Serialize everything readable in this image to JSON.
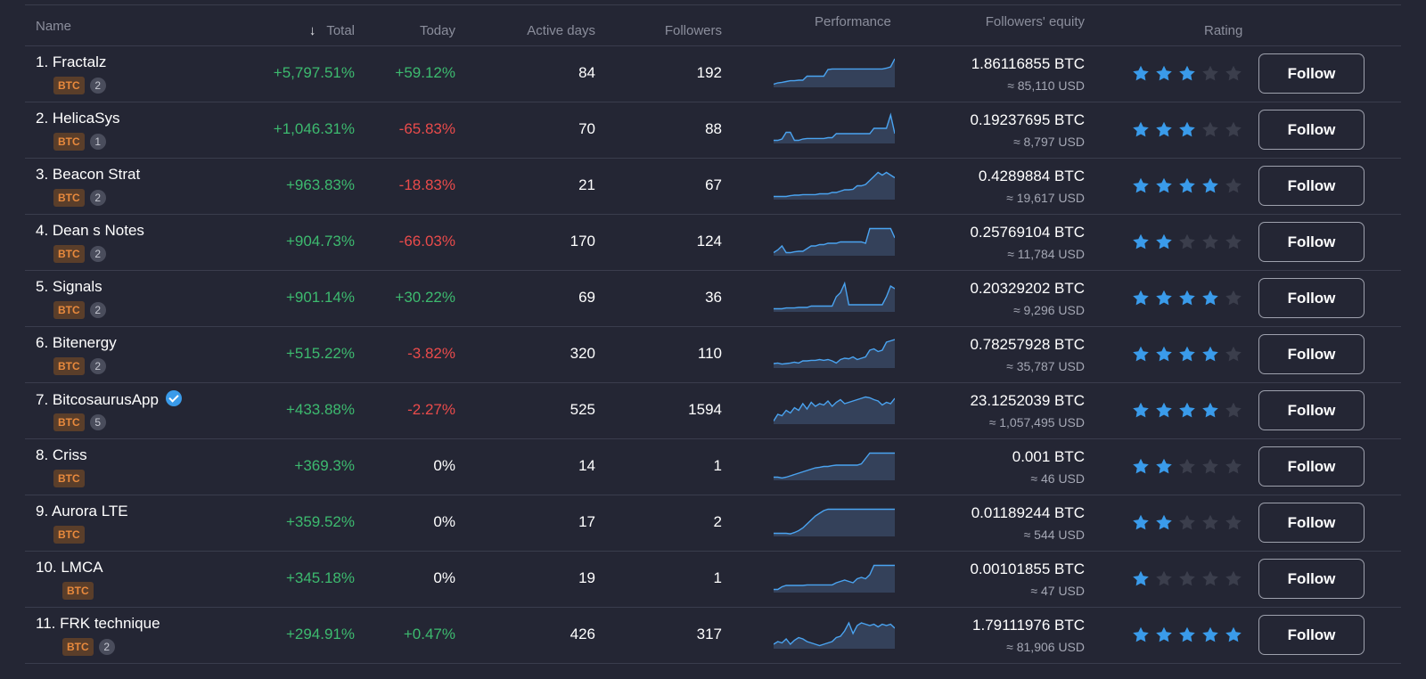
{
  "header": {
    "name": "Name",
    "total": "Total",
    "today": "Today",
    "active_days": "Active days",
    "followers": "Followers",
    "performance": "Performance",
    "equity": "Followers' equity",
    "rating": "Rating",
    "sort_icon": "arrow-down-icon"
  },
  "colors": {
    "positive": "#3dba6f",
    "negative": "#ea4b4b",
    "accent": "#3a9bea",
    "btc_badge": "#e98a3d"
  },
  "rows": [
    {
      "name": "1. Fractalz",
      "badge": "BTC",
      "count": "2",
      "verified": false,
      "total": "+5,797.51%",
      "today": "+59.12%",
      "today_sign": "pos",
      "days": "84",
      "followers": "192",
      "btc": "1.86116855 BTC",
      "usd": "≈ 85,110 USD",
      "rating": 3,
      "follow": "Follow",
      "perf": [
        0.05,
        0.1,
        0.12,
        0.15,
        0.18,
        0.18,
        0.2,
        0.2,
        0.35,
        0.35,
        0.35,
        0.35,
        0.35,
        0.6,
        0.62,
        0.62,
        0.62,
        0.62,
        0.62,
        0.62,
        0.62,
        0.62,
        0.62,
        0.62,
        0.62,
        0.62,
        0.62,
        0.65,
        0.7,
        1.0
      ]
    },
    {
      "name": "2. HelicaSys",
      "badge": "BTC",
      "count": "1",
      "verified": false,
      "total": "+1,046.31%",
      "today": "-65.83%",
      "today_sign": "neg",
      "days": "70",
      "followers": "88",
      "btc": "0.19237695 BTC",
      "usd": "≈ 8,797 USD",
      "rating": 3,
      "follow": "Follow",
      "perf": [
        0.05,
        0.05,
        0.1,
        0.35,
        0.35,
        0.05,
        0.05,
        0.1,
        0.12,
        0.12,
        0.12,
        0.12,
        0.12,
        0.15,
        0.15,
        0.3,
        0.3,
        0.3,
        0.3,
        0.3,
        0.3,
        0.3,
        0.3,
        0.3,
        0.5,
        0.5,
        0.5,
        0.5,
        1.0,
        0.3
      ]
    },
    {
      "name": "3. Beacon Strat",
      "badge": "BTC",
      "count": "2",
      "verified": false,
      "total": "+963.83%",
      "today": "-18.83%",
      "today_sign": "neg",
      "days": "21",
      "followers": "67",
      "btc": "0.4289884 BTC",
      "usd": "≈ 19,617 USD",
      "rating": 4,
      "follow": "Follow",
      "perf": [
        0.05,
        0.05,
        0.05,
        0.05,
        0.08,
        0.1,
        0.1,
        0.12,
        0.12,
        0.12,
        0.12,
        0.15,
        0.15,
        0.15,
        0.2,
        0.2,
        0.25,
        0.3,
        0.3,
        0.32,
        0.45,
        0.45,
        0.5,
        0.65,
        0.8,
        0.95,
        0.85,
        0.95,
        0.85,
        0.75
      ]
    },
    {
      "name": "4. Dean s Notes",
      "badge": "BTC",
      "count": "2",
      "verified": false,
      "total": "+904.73%",
      "today": "-66.03%",
      "today_sign": "neg",
      "days": "170",
      "followers": "124",
      "btc": "0.25769104 BTC",
      "usd": "≈ 11,784 USD",
      "rating": 2,
      "follow": "Follow",
      "perf": [
        0.05,
        0.15,
        0.3,
        0.05,
        0.05,
        0.08,
        0.1,
        0.1,
        0.2,
        0.3,
        0.3,
        0.35,
        0.35,
        0.4,
        0.4,
        0.4,
        0.45,
        0.45,
        0.45,
        0.45,
        0.45,
        0.45,
        0.4,
        0.95,
        0.95,
        0.95,
        0.95,
        0.95,
        0.95,
        0.6
      ]
    },
    {
      "name": "5. Signals",
      "badge": "BTC",
      "count": "2",
      "verified": false,
      "total": "+901.14%",
      "today": "+30.22%",
      "today_sign": "pos",
      "days": "69",
      "followers": "36",
      "btc": "0.20329202 BTC",
      "usd": "≈ 9,296 USD",
      "rating": 4,
      "follow": "Follow",
      "perf": [
        0.05,
        0.05,
        0.05,
        0.08,
        0.08,
        0.08,
        0.1,
        0.1,
        0.1,
        0.15,
        0.15,
        0.15,
        0.15,
        0.15,
        0.15,
        0.5,
        0.65,
        1.0,
        0.2,
        0.2,
        0.2,
        0.2,
        0.2,
        0.2,
        0.2,
        0.2,
        0.2,
        0.5,
        0.9,
        0.8
      ]
    },
    {
      "name": "6. Bitenergy",
      "badge": "BTC",
      "count": "2",
      "verified": false,
      "total": "+515.22%",
      "today": "-3.82%",
      "today_sign": "neg",
      "days": "320",
      "followers": "110",
      "btc": "0.78257928 BTC",
      "usd": "≈ 35,787 USD",
      "rating": 4,
      "follow": "Follow",
      "perf": [
        0.1,
        0.12,
        0.08,
        0.1,
        0.12,
        0.15,
        0.12,
        0.2,
        0.2,
        0.22,
        0.22,
        0.25,
        0.22,
        0.25,
        0.2,
        0.12,
        0.25,
        0.3,
        0.28,
        0.35,
        0.25,
        0.3,
        0.35,
        0.6,
        0.65,
        0.55,
        0.6,
        0.9,
        0.95,
        1.0
      ]
    },
    {
      "name": "7. BitcosaurusApp",
      "badge": "BTC",
      "count": "5",
      "verified": true,
      "total": "+433.88%",
      "today": "-2.27%",
      "today_sign": "neg",
      "days": "525",
      "followers": "1594",
      "btc": "23.1252039 BTC",
      "usd": "≈ 1,057,495 USD",
      "rating": 4,
      "follow": "Follow",
      "perf": [
        0.05,
        0.3,
        0.25,
        0.45,
        0.35,
        0.55,
        0.45,
        0.7,
        0.5,
        0.75,
        0.6,
        0.7,
        0.65,
        0.8,
        0.6,
        0.75,
        0.85,
        0.7,
        0.75,
        0.8,
        0.85,
        0.9,
        0.95,
        0.92,
        0.85,
        0.8,
        0.65,
        0.75,
        0.7,
        0.9
      ]
    },
    {
      "name": "8. Criss",
      "badge": "BTC",
      "count": "",
      "verified": false,
      "total": "+369.3%",
      "today": "0%",
      "today_sign": "neu",
      "days": "14",
      "followers": "1",
      "btc": "0.001 BTC",
      "usd": "≈ 46 USD",
      "rating": 2,
      "follow": "Follow",
      "perf": [
        0.05,
        0.05,
        0.02,
        0.05,
        0.1,
        0.15,
        0.2,
        0.25,
        0.3,
        0.35,
        0.4,
        0.42,
        0.45,
        0.45,
        0.48,
        0.5,
        0.5,
        0.5,
        0.5,
        0.5,
        0.5,
        0.55,
        0.75,
        0.95,
        0.95,
        0.95,
        0.95,
        0.95,
        0.95,
        0.95
      ]
    },
    {
      "name": "9. Aurora LTE",
      "badge": "BTC",
      "count": "",
      "verified": false,
      "total": "+359.52%",
      "today": "0%",
      "today_sign": "neu",
      "days": "17",
      "followers": "2",
      "btc": "0.01189244 BTC",
      "usd": "≈ 544 USD",
      "rating": 2,
      "follow": "Follow",
      "perf": [
        0.05,
        0.05,
        0.05,
        0.05,
        0.03,
        0.08,
        0.15,
        0.25,
        0.4,
        0.55,
        0.7,
        0.8,
        0.9,
        0.95,
        0.95,
        0.95,
        0.95,
        0.95,
        0.95,
        0.95,
        0.95,
        0.95,
        0.95,
        0.95,
        0.95,
        0.95,
        0.95,
        0.95,
        0.95,
        0.95
      ]
    },
    {
      "name": "10. LMCA",
      "badge": "BTC",
      "count": "",
      "verified": false,
      "total": "+345.18%",
      "today": "0%",
      "today_sign": "neu",
      "days": "19",
      "followers": "1",
      "btc": "0.00101855 BTC",
      "usd": "≈ 47 USD",
      "rating": 1,
      "follow": "Follow",
      "perf": [
        0.05,
        0.05,
        0.15,
        0.2,
        0.2,
        0.2,
        0.2,
        0.2,
        0.22,
        0.22,
        0.22,
        0.22,
        0.22,
        0.22,
        0.22,
        0.3,
        0.35,
        0.4,
        0.35,
        0.3,
        0.45,
        0.5,
        0.45,
        0.6,
        0.95,
        0.95,
        0.95,
        0.95,
        0.95,
        0.95
      ]
    },
    {
      "name": "11. FRK technique",
      "badge": "BTC",
      "count": "2",
      "verified": false,
      "total": "+294.91%",
      "today": "+0.47%",
      "today_sign": "pos",
      "days": "426",
      "followers": "317",
      "btc": "1.79111976 BTC",
      "usd": "≈ 81,906 USD",
      "rating": 5,
      "follow": "Follow",
      "perf": [
        0.1,
        0.2,
        0.15,
        0.3,
        0.1,
        0.25,
        0.35,
        0.3,
        0.2,
        0.15,
        0.1,
        0.05,
        0.1,
        0.15,
        0.2,
        0.35,
        0.4,
        0.6,
        0.9,
        0.5,
        0.8,
        0.9,
        0.85,
        0.8,
        0.85,
        0.75,
        0.85,
        0.8,
        0.85,
        0.7
      ]
    }
  ]
}
